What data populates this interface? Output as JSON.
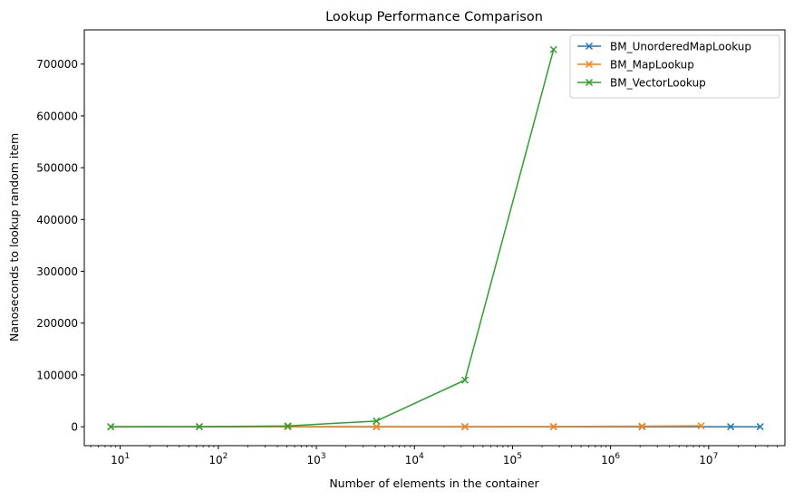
{
  "chart_data": {
    "type": "line",
    "title": "Lookup Performance Comparison",
    "xlabel": "Number of elements in the container",
    "ylabel": "Nanoseconds to lookup random item",
    "xscale": "log",
    "xlim": [
      4.3,
      60000000
    ],
    "ylim": [
      -36500,
      766000
    ],
    "grid": false,
    "legend_position": "top-right",
    "x_ticks": [
      {
        "value": 10,
        "label": "10^1"
      },
      {
        "value": 100,
        "label": "10^2"
      },
      {
        "value": 1000,
        "label": "10^3"
      },
      {
        "value": 10000,
        "label": "10^4"
      },
      {
        "value": 100000,
        "label": "10^5"
      },
      {
        "value": 1000000,
        "label": "10^6"
      },
      {
        "value": 10000000,
        "label": "10^7"
      }
    ],
    "y_ticks": [
      {
        "value": 0,
        "label": "0"
      },
      {
        "value": 100000,
        "label": "100000"
      },
      {
        "value": 200000,
        "label": "200000"
      },
      {
        "value": 300000,
        "label": "300000"
      },
      {
        "value": 400000,
        "label": "400000"
      },
      {
        "value": 500000,
        "label": "500000"
      },
      {
        "value": 600000,
        "label": "600000"
      },
      {
        "value": 700000,
        "label": "700000"
      }
    ],
    "series": [
      {
        "name": "BM_UnorderedMapLookup",
        "color": "#1f77b4",
        "marker": "x",
        "x": [
          8,
          64,
          512,
          4096,
          32768,
          262144,
          2097152,
          16777216,
          33554432
        ],
        "y": [
          20,
          20,
          20,
          25,
          25,
          30,
          40,
          60,
          70
        ]
      },
      {
        "name": "BM_MapLookup",
        "color": "#ff7f0e",
        "marker": "x",
        "x": [
          8,
          64,
          512,
          4096,
          32768,
          262144,
          2097152,
          8388608
        ],
        "y": [
          20,
          40,
          80,
          150,
          250,
          450,
          1000,
          1800
        ]
      },
      {
        "name": "BM_VectorLookup",
        "color": "#2ca02c",
        "marker": "x",
        "x": [
          8,
          64,
          512,
          4096,
          32768,
          262144
        ],
        "y": [
          15,
          200,
          1500,
          11000,
          90000,
          728000
        ]
      }
    ]
  }
}
